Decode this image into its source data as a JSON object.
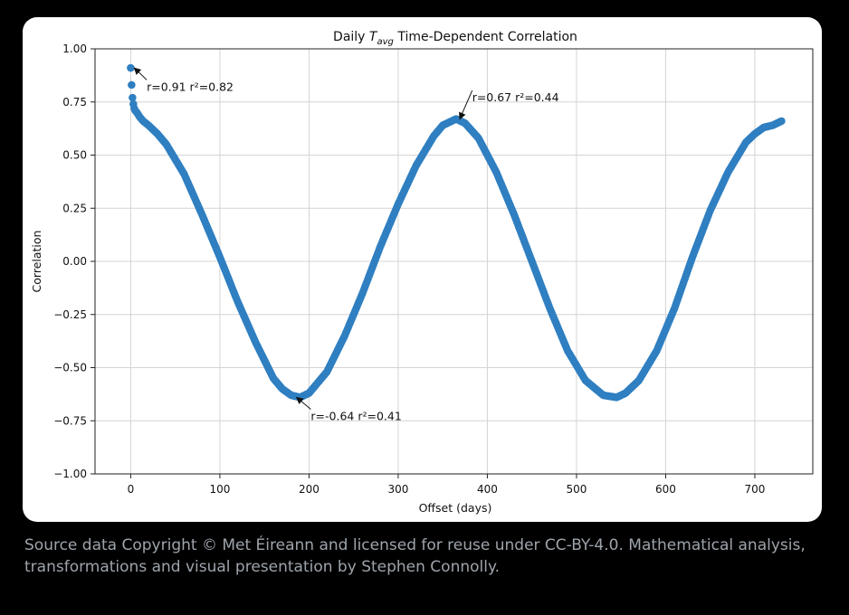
{
  "chart_data": {
    "type": "scatter",
    "title_prefix": "Daily ",
    "title_var": "T",
    "title_sub": "avg",
    "title_suffix": " Time-Dependent Correlation",
    "xlabel": "Offset (days)",
    "ylabel": "Correlation",
    "xlim": [
      -40,
      765
    ],
    "ylim": [
      -1.0,
      1.0
    ],
    "xticks": [
      0,
      100,
      200,
      300,
      400,
      500,
      600,
      700
    ],
    "xtick_labels": [
      "0",
      "100",
      "200",
      "300",
      "400",
      "500",
      "600",
      "700"
    ],
    "yticks": [
      -1.0,
      -0.75,
      -0.5,
      -0.25,
      0.0,
      0.25,
      0.5,
      0.75,
      1.0
    ],
    "ytick_labels": [
      "−1.00",
      "−0.75",
      "−0.50",
      "−0.25",
      "0.00",
      "0.25",
      "0.50",
      "0.75",
      "1.00"
    ],
    "grid": true,
    "color": "#2f7fc1",
    "series": [
      {
        "x": [
          0,
          1,
          2,
          3,
          4,
          5,
          7,
          10,
          14,
          20,
          30,
          40,
          60,
          80,
          100,
          120,
          140,
          160,
          170,
          180,
          190,
          200,
          220,
          240,
          260,
          280,
          300,
          320,
          340,
          350,
          365,
          375,
          390,
          410,
          430,
          450,
          470,
          490,
          510,
          530,
          545,
          555,
          570,
          590,
          610,
          630,
          650,
          670,
          690,
          700,
          710,
          720,
          725,
          730
        ],
        "y": [
          0.91,
          0.83,
          0.77,
          0.74,
          0.72,
          0.71,
          0.7,
          0.68,
          0.66,
          0.64,
          0.6,
          0.55,
          0.41,
          0.22,
          0.02,
          -0.19,
          -0.38,
          -0.55,
          -0.6,
          -0.63,
          -0.64,
          -0.62,
          -0.52,
          -0.35,
          -0.15,
          0.07,
          0.27,
          0.45,
          0.59,
          0.64,
          0.67,
          0.65,
          0.58,
          0.42,
          0.22,
          0.0,
          -0.22,
          -0.42,
          -0.56,
          -0.63,
          -0.64,
          -0.62,
          -0.56,
          -0.42,
          -0.22,
          0.02,
          0.24,
          0.42,
          0.56,
          0.6,
          0.63,
          0.64,
          0.65,
          0.66
        ]
      }
    ],
    "annotations": [
      {
        "text": "r=0.91 r²=0.82",
        "x": 0,
        "y": 0.91,
        "tx": 18,
        "ty": 0.82
      },
      {
        "text": "r=0.67 r²=0.44",
        "x": 365,
        "y": 0.67,
        "tx": 383,
        "ty": 0.77
      },
      {
        "text": "r=-0.64 r²=0.41",
        "x": 182,
        "y": -0.64,
        "tx": 202,
        "ty": -0.73
      }
    ]
  },
  "caption": "Source data Copyright © Met Éireann and licensed for reuse under CC-BY-4.0. Mathematical analysis, transformations and visual presentation by Stephen Connolly."
}
